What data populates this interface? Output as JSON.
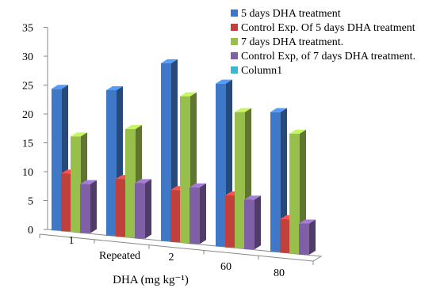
{
  "chart_data": {
    "type": "bar",
    "variant": "3d-clustered-column",
    "categories": [
      "1",
      "Repeated",
      "2",
      "60",
      "80"
    ],
    "series": [
      {
        "name": "5 days DHA treatment",
        "color": "#3F78C6",
        "values": [
          24.5,
          25.2,
          30.8,
          28.2,
          24.2
        ]
      },
      {
        "name": "Control Exp. Of 5 days DHA treatment",
        "color": "#C0403C",
        "values": [
          10.0,
          10.0,
          9.0,
          9.0,
          5.8
        ]
      },
      {
        "name": "7 days DHA treatment.",
        "color": "#98BE4C",
        "values": [
          16.6,
          18.8,
          25.4,
          23.6,
          20.8
        ]
      },
      {
        "name": "Control Exp, of 7 days DHA treatment.",
        "color": "#7F60A6",
        "values": [
          8.5,
          9.6,
          9.8,
          8.6,
          5.4
        ]
      },
      {
        "name": "Column1",
        "color": "#3DB6D0",
        "values": [
          null,
          null,
          null,
          null,
          null
        ]
      }
    ],
    "y_ticks": [
      "0",
      "5",
      "10",
      "15",
      "20",
      "25",
      "30",
      "35"
    ],
    "ylim": [
      0,
      35
    ],
    "xlabel": "DHA (mg kg⁻¹)",
    "ylabel": "",
    "title": "",
    "legend_position": "top-right",
    "grid": false
  }
}
